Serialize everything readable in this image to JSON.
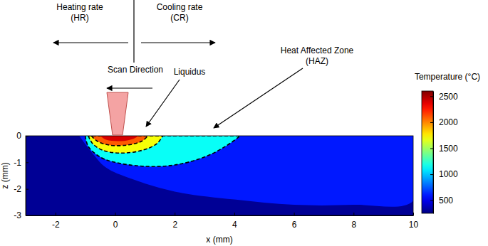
{
  "chart_data": {
    "type": "contour",
    "xlabel": "x (mm)",
    "ylabel": "z (mm)",
    "xlim": [
      -3,
      10
    ],
    "xticks": [
      -2,
      0,
      2,
      4,
      6,
      8,
      10
    ],
    "ylim": [
      -3,
      0
    ],
    "yticks": [
      -3,
      -2,
      -1,
      0
    ],
    "colorbar": {
      "title": "Temperature (°C)",
      "range": [
        250,
        2600
      ],
      "ticks": [
        500,
        1000,
        1500,
        2000,
        2500
      ]
    },
    "regions": [
      {
        "level": 300,
        "points": [
          [
            -3,
            0
          ],
          [
            -3,
            -3
          ],
          [
            10,
            -3
          ],
          [
            10,
            0
          ]
        ]
      },
      {
        "level": 600,
        "points": [
          [
            -1.2,
            0
          ],
          [
            -0.8,
            -0.6
          ],
          [
            -0.3,
            -1.2
          ],
          [
            0.5,
            -1.6
          ],
          [
            2,
            -2.1
          ],
          [
            4,
            -2.4
          ],
          [
            6,
            -2.6
          ],
          [
            8,
            -2.6
          ],
          [
            10,
            -2.45
          ],
          [
            10,
            0
          ]
        ]
      },
      {
        "level": 1150,
        "line_style": "dashed",
        "points": [
          [
            -1.0,
            0
          ],
          [
            -0.9,
            -0.4
          ],
          [
            -0.5,
            -0.8
          ],
          [
            0,
            -1.0
          ],
          [
            1,
            -1.15
          ],
          [
            2,
            -1.1
          ],
          [
            3,
            -0.8
          ],
          [
            3.7,
            -0.4
          ],
          [
            4.2,
            0
          ]
        ]
      },
      {
        "level": 1700,
        "line_style": "dashed",
        "points": [
          [
            -0.9,
            0
          ],
          [
            -0.75,
            -0.3
          ],
          [
            -0.4,
            -0.55
          ],
          [
            0.2,
            -0.65
          ],
          [
            0.9,
            -0.55
          ],
          [
            1.4,
            -0.3
          ],
          [
            1.6,
            0
          ]
        ]
      },
      {
        "level": 2100,
        "line_style": "dashed",
        "points": [
          [
            -0.8,
            0
          ],
          [
            -0.6,
            -0.2
          ],
          [
            -0.2,
            -0.35
          ],
          [
            0.4,
            -0.35
          ],
          [
            0.9,
            -0.2
          ],
          [
            1.1,
            0
          ]
        ]
      },
      {
        "level": 2400,
        "points": [
          [
            -0.5,
            0
          ],
          [
            -0.3,
            -0.15
          ],
          [
            0.2,
            -0.2
          ],
          [
            0.6,
            -0.12
          ],
          [
            0.8,
            0
          ]
        ]
      }
    ],
    "annotations": [
      {
        "text": [
          "Heating rate",
          "(HR)"
        ]
      },
      {
        "text": [
          "Cooling rate",
          "(CR)"
        ]
      },
      {
        "text": [
          "Scan Direction"
        ]
      },
      {
        "text": [
          "Liquidus"
        ]
      },
      {
        "text": [
          "Heat Affected Zone",
          "(HAZ)"
        ]
      }
    ]
  }
}
